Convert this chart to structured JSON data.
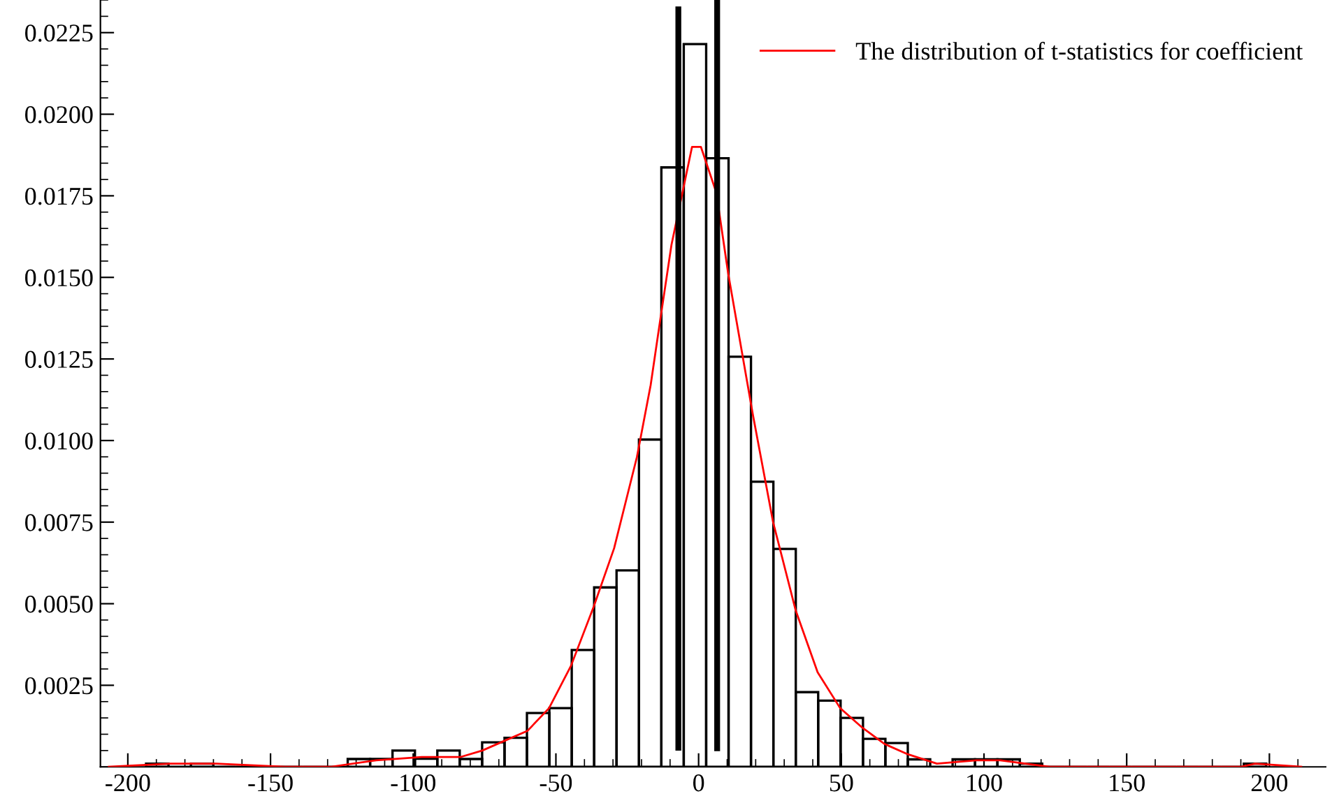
{
  "chart_data": {
    "type": "histogram",
    "bins": [
      -193.6,
      -185.75,
      -177.9,
      -170.05,
      -162.2,
      -154.35,
      -146.5,
      -138.65,
      -130.8,
      -122.95,
      -115.1,
      -107.25,
      -99.4,
      -91.55,
      -83.7,
      -75.85,
      -68.0,
      -60.15,
      -52.3,
      -44.45,
      -36.6,
      -28.75,
      -20.9,
      -13.05,
      -5.2,
      2.65,
      10.5,
      18.35,
      26.2,
      34.05,
      41.9,
      49.75,
      57.6,
      65.45,
      73.3,
      81.15,
      89.0,
      96.85,
      104.7,
      112.55,
      120.4,
      128.25,
      136.1,
      143.95,
      151.8,
      159.65,
      167.5,
      175.35,
      183.2,
      191.05,
      198.9
    ],
    "values": [
      0.0001,
      0,
      0.0001,
      0,
      0,
      0,
      0,
      0,
      0,
      0.00024,
      0.00024,
      0.0005,
      0.00025,
      0.0005,
      0.00024,
      0.00075,
      0.00089,
      0.00165,
      0.0018,
      0.00358,
      0.0055,
      0.00602,
      0.01003,
      0.01837,
      0.02215,
      0.01865,
      0.01257,
      0.00874,
      0.00668,
      0.00229,
      0.00203,
      0.0015,
      0.00086,
      0.00073,
      0.00023,
      0,
      0.00023,
      0.00023,
      0.00023,
      0.0001,
      0,
      0,
      0,
      0,
      0,
      0,
      0,
      0,
      0,
      0.0001
    ],
    "color": "#000000",
    "series": [
      {
        "type": "line",
        "name": "The distribution of t-statistics for coefficient",
        "color": "#ff0000",
        "x": [
          -207,
          -185,
          -169,
          -145,
          -129,
          -113,
          -97,
          -83.5,
          -75.8,
          -68,
          -60,
          -52.4,
          -44.7,
          -36.8,
          -29.6,
          -21.6,
          -16.8,
          -13.1,
          -9.5,
          -2.3,
          0.8,
          6.2,
          10.4,
          19,
          26.1,
          34,
          41.7,
          49.6,
          57.4,
          65.2,
          72.9,
          83.5,
          97.3,
          105.7,
          123,
          190,
          195,
          211.5
        ],
        "values": [
          0,
          0.0001,
          0.0001,
          0,
          0,
          0.0002,
          0.0003,
          0.0003,
          0.0005,
          0.0008,
          0.0011,
          0.0018,
          0.0031,
          0.0049,
          0.0067,
          0.0095,
          0.0117,
          0.0139,
          0.016,
          0.019,
          0.019,
          0.0176,
          0.0151,
          0.0108,
          0.0075,
          0.0048,
          0.0029,
          0.0018,
          0.0012,
          0.0007,
          0.0004,
          0.0001,
          0.0002,
          0.0002,
          0,
          0,
          0.0001,
          0
        ]
      },
      {
        "type": "line",
        "color": "#000000",
        "x": [
          -7.1,
          -7.1
        ],
        "values": [
          0.0005,
          0.0233
        ]
      },
      {
        "type": "line",
        "color": "#000000",
        "x": [
          6.5,
          6.5
        ],
        "values": [
          0.00048,
          0.0235
        ]
      }
    ],
    "xlim": [
      -209.6,
      219.7
    ],
    "ylim": [
      0,
      0.0235
    ],
    "xticks": [
      -200,
      -150,
      -100,
      -50,
      0,
      50,
      100,
      150,
      200
    ],
    "yticks": [
      {
        "value": 0.0025,
        "label": "0.0025"
      },
      {
        "value": 0.005,
        "label": "0.0050"
      },
      {
        "value": 0.0075,
        "label": "0.0075"
      },
      {
        "value": 0.01,
        "label": "0.0100"
      },
      {
        "value": 0.0125,
        "label": "0.0125"
      },
      {
        "value": 0.015,
        "label": "0.0150"
      },
      {
        "value": 0.0175,
        "label": "0.0175"
      },
      {
        "value": 0.02,
        "label": "0.0200"
      },
      {
        "value": 0.0225,
        "label": "0.0225"
      }
    ],
    "legend": "top right",
    "grid": false
  }
}
